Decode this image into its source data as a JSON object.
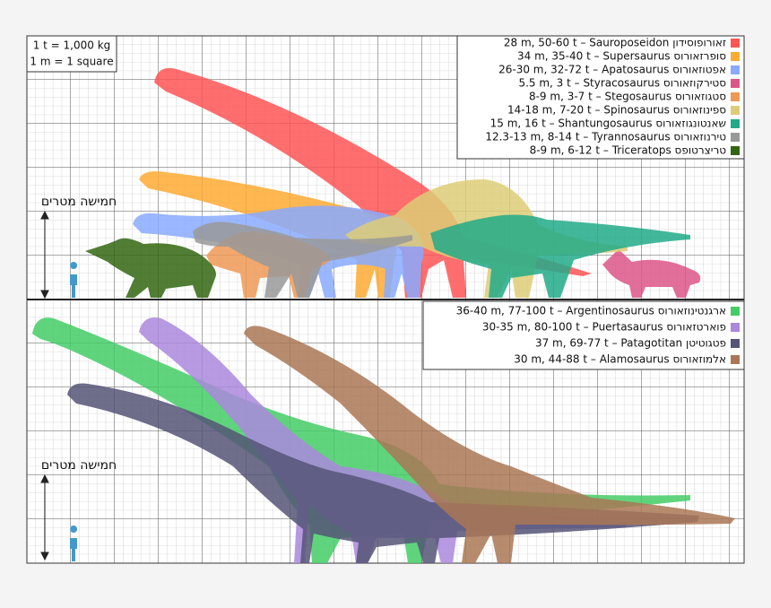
{
  "scale": {
    "lines": [
      "1 t = 1,000 kg",
      "1 m = 1 square"
    ]
  },
  "panels": [
    {
      "height_label": "חמישה מטרים",
      "legend": [
        {
          "text": "28 m, 50-60 t –  Sauroposeidon  זאורופוסידון",
          "color": "#ff5555"
        },
        {
          "text": "34 m, 35-40 t –  Supersaurus  סופרזאורוס",
          "color": "#ffaa33"
        },
        {
          "text": "26-30 m, 32-72 t –  Apatosaurus  אפטוזאורוס",
          "color": "#88aaff"
        },
        {
          "text": "5.5 m, 3 t –  Styracosaurus  סטירקוזאורוס",
          "color": "#dd5588"
        },
        {
          "text": "8-9 m, 3-7 t –  Stegosaurus  סטגוזאורוס",
          "color": "#ee9955"
        },
        {
          "text": "14-18 m, 7-20 t –  Spinosaurus  ספינוזאורוס",
          "color": "#ddcc77"
        },
        {
          "text": "15 m, 16 t –  Shantungosaurus  שאנטונגוזאורוס",
          "color": "#22aa88"
        },
        {
          "text": "12.3-13 m, 8-14 t –  Tyrannosaurus  טירנוזאורוס",
          "color": "#999999"
        },
        {
          "text": "8-9 m, 6-12 t –  Triceratops  טריצרטופס",
          "color": "#336611"
        }
      ]
    },
    {
      "height_label": "חמישה מטרים",
      "legend": [
        {
          "text": "36-40 m, 77-100 t –  Argentinosaurus  ארגנטינוזאורוס",
          "color": "#44cc66"
        },
        {
          "text": "30-35 m, 80-100 t –  Puertasaurus  פוארטזאורוס",
          "color": "#aa88dd"
        },
        {
          "text": "37 m, 69-77 t –  Patagotitan  פטגוטיטן",
          "color": "#555577"
        },
        {
          "text": "30 m, 44-88 t –  Alamosaurus  אלמוזאורוס",
          "color": "#aa7755"
        }
      ]
    }
  ]
}
